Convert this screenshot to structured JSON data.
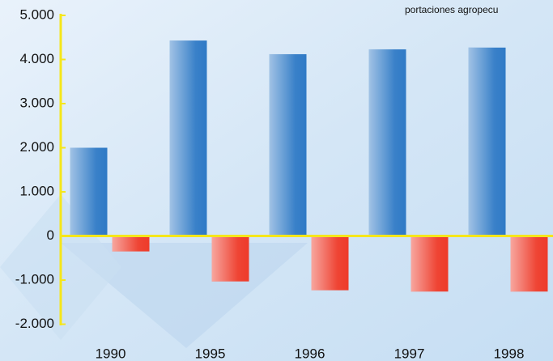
{
  "chart_data": {
    "type": "bar",
    "annotation": "portaciones agropecu",
    "categories": [
      "1990",
      "1995",
      "1996",
      "1997",
      "1998"
    ],
    "series": [
      {
        "color": "#2f7ac6",
        "values": [
          2000,
          4430,
          4120,
          4230,
          4270
        ]
      },
      {
        "color": "#ee3b2a",
        "values": [
          -350,
          -1030,
          -1230,
          -1260,
          -1260
        ]
      }
    ],
    "ylim": [
      -2100,
      5000
    ],
    "yticks": [
      {
        "value": 5000,
        "label": "5.000"
      },
      {
        "value": 4000,
        "label": "4.000"
      },
      {
        "value": 3000,
        "label": "3.000"
      },
      {
        "value": 2000,
        "label": "2.000"
      },
      {
        "value": 1000,
        "label": "1.000"
      },
      0,
      {
        "value": -1000,
        "label": "-1.000"
      },
      {
        "value": -2000,
        "label": "-2.000"
      }
    ],
    "axis_color": "#f5e61a"
  }
}
